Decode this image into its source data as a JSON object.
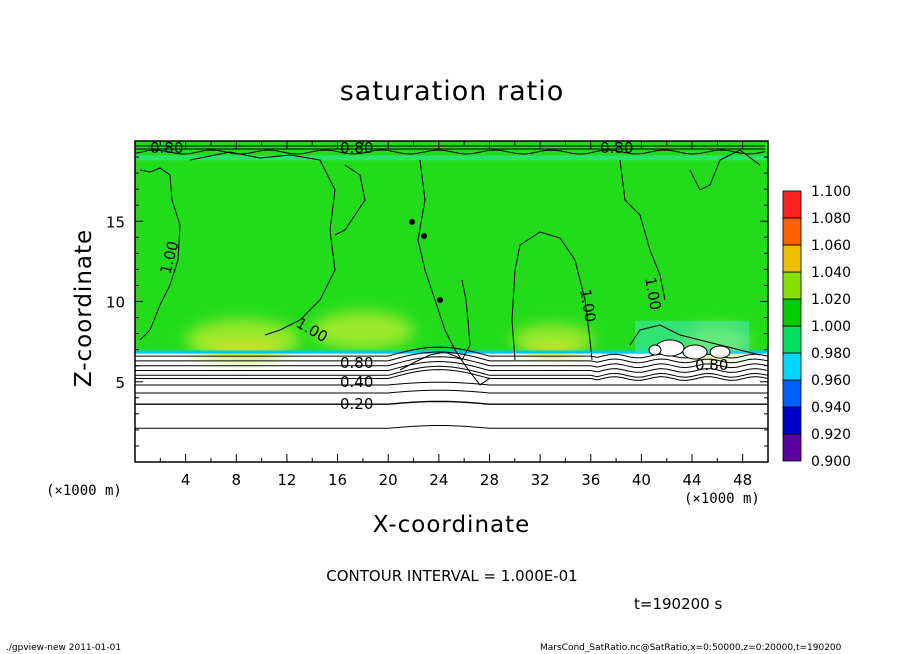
{
  "chart_data": {
    "type": "heatmap",
    "title": "saturation ratio",
    "xlabel": "X-coordinate",
    "ylabel": "Z-coordinate",
    "x_unit": "(×1000 m)",
    "xlim": [
      0,
      50
    ],
    "ylim": [
      0,
      20
    ],
    "x_ticks": [
      4,
      8,
      12,
      16,
      20,
      24,
      28,
      32,
      36,
      40,
      44,
      48
    ],
    "y_ticks": [
      5,
      10,
      15
    ],
    "colorbar": {
      "levels": [
        0.9,
        0.92,
        0.94,
        0.96,
        0.98,
        1.0,
        1.02,
        1.04,
        1.06,
        1.08,
        1.1
      ],
      "labels": [
        "0.900",
        "0.920",
        "0.940",
        "0.960",
        "0.980",
        "1.000",
        "1.020",
        "1.040",
        "1.060",
        "1.080",
        "1.100"
      ],
      "colors": [
        "#5a00a0",
        "#0000c8",
        "#0060ff",
        "#00d8ff",
        "#00e060",
        "#00cc00",
        "#88e000",
        "#f0c000",
        "#ff6000",
        "#ff2020",
        "#ff9090"
      ]
    },
    "contour_interval": 0.1,
    "moist_layer_base_km": 6.8,
    "contour_lines": [
      {
        "level": 0.2,
        "z_km": 3.6
      },
      {
        "level": 0.4,
        "z_km": 5.2
      },
      {
        "level": 0.8,
        "z_km": 6.0
      }
    ],
    "contour_labels": [
      "1.00",
      "1.00",
      "1.00",
      "1.00",
      "0.80",
      "0.40",
      "0.20",
      "0.80",
      "0.80",
      "0.80",
      "0.80"
    ]
  },
  "contour_interval_text": "CONTOUR INTERVAL = 1.000E-01",
  "time_text": "t=190200 s",
  "footer_left": "./gpview-new   2011-01-01",
  "footer_right": "MarsCond_SatRatio.nc@SatRatio,x=0:50000,z=0:20000,t=190200"
}
